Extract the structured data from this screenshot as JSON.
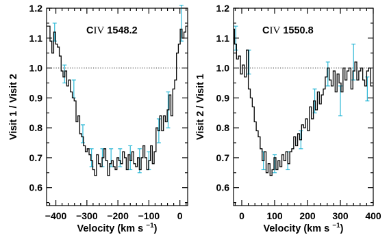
{
  "chart_data": [
    {
      "type": "line",
      "annotation": "CIV 1548.2",
      "annotation_parts": {
        "element": "C",
        "ion": "IV",
        "wavelength": "1548.2"
      },
      "xlabel": "Velocity (km s",
      "xlabel_sup": "−1",
      "xlabel_close": ")",
      "ylabel": "Visit 1 / Visit 2",
      "xlim": [
        -430,
        25
      ],
      "ylim": [
        0.54,
        1.2
      ],
      "xticks": [
        -400,
        -300,
        -200,
        -100,
        0
      ],
      "xtick_labels": [
        "−400",
        "−300",
        "−200",
        "−100",
        "0"
      ],
      "yticks": [
        0.6,
        0.7,
        0.8,
        0.9,
        1.0,
        1.1,
        1.2
      ],
      "ytick_labels": [
        "0.6",
        "0.7",
        "0.8",
        "0.9",
        "1.0",
        "1.1",
        "1.2"
      ],
      "reference_line": 1.0,
      "series": [
        {
          "x": [
            -428,
            -422,
            -416,
            -410,
            -404,
            -398,
            -392,
            -386,
            -380,
            -374,
            -368,
            -362,
            -356,
            -350,
            -344,
            -338,
            -332,
            -326,
            -320,
            -314,
            -308,
            -302,
            -296,
            -290,
            -284,
            -278,
            -272,
            -266,
            -260,
            -254,
            -248,
            -242,
            -236,
            -230,
            -224,
            -218,
            -212,
            -206,
            -200,
            -194,
            -188,
            -182,
            -176,
            -170,
            -164,
            -158,
            -152,
            -146,
            -140,
            -134,
            -128,
            -122,
            -116,
            -110,
            -104,
            -98,
            -92,
            -86,
            -80,
            -74,
            -68,
            -62,
            -56,
            -50,
            -44,
            -38,
            -32,
            -26,
            -20,
            -14,
            -8,
            -2,
            4,
            10,
            16,
            22
          ],
          "y": [
            1.14,
            1.14,
            1.09,
            1.05,
            1.12,
            1.08,
            1.07,
            1.04,
            0.99,
            0.97,
            0.99,
            0.94,
            0.96,
            0.92,
            0.9,
            0.89,
            0.82,
            0.84,
            0.78,
            0.77,
            0.74,
            0.72,
            0.73,
            0.71,
            0.69,
            0.66,
            0.64,
            0.71,
            0.68,
            0.67,
            0.7,
            0.73,
            0.69,
            0.64,
            0.68,
            0.69,
            0.67,
            0.66,
            0.7,
            0.69,
            0.68,
            0.72,
            0.7,
            0.66,
            0.71,
            0.69,
            0.72,
            0.68,
            0.67,
            0.7,
            0.66,
            0.7,
            0.74,
            0.7,
            0.66,
            0.69,
            0.74,
            0.68,
            0.72,
            0.8,
            0.79,
            0.84,
            0.79,
            0.84,
            0.82,
            0.86,
            0.91,
            0.84,
            0.93,
            0.96,
            1.05,
            1.08,
            1.13,
            1.1,
            1.12,
            1.14
          ]
        }
      ],
      "error_bars": [
        {
          "x": -404,
          "y": 1.12,
          "err": 0.03
        },
        {
          "x": -372,
          "y": 0.98,
          "err": 0.03
        },
        {
          "x": -342,
          "y": 0.93,
          "err": 0.03
        },
        {
          "x": -313,
          "y": 0.78,
          "err": 0.03
        },
        {
          "x": -285,
          "y": 0.7,
          "err": 0.03
        },
        {
          "x": -250,
          "y": 0.7,
          "err": 0.03
        },
        {
          "x": -222,
          "y": 0.7,
          "err": 0.03
        },
        {
          "x": -193,
          "y": 0.7,
          "err": 0.03
        },
        {
          "x": -160,
          "y": 0.7,
          "err": 0.04
        },
        {
          "x": -130,
          "y": 0.69,
          "err": 0.04
        },
        {
          "x": -100,
          "y": 0.69,
          "err": 0.03
        },
        {
          "x": -68,
          "y": 0.79,
          "err": 0.04
        },
        {
          "x": -38,
          "y": 0.86,
          "err": 0.06
        },
        {
          "x": 5,
          "y": 1.15,
          "err": 0.06
        }
      ]
    },
    {
      "type": "line",
      "annotation": "CIV 1550.8",
      "annotation_parts": {
        "element": "C",
        "ion": "IV",
        "wavelength": "1550.8"
      },
      "xlabel": "Velocity (km s",
      "xlabel_sup": "−1",
      "xlabel_close": ")",
      "ylabel": "Visit 2 / Visit 1",
      "xlim": [
        -25,
        400
      ],
      "ylim": [
        0.54,
        1.2
      ],
      "xticks": [
        0,
        100,
        200,
        300,
        400
      ],
      "xtick_labels": [
        "0",
        "100",
        "200",
        "300",
        "400"
      ],
      "yticks": [
        0.6,
        0.7,
        0.8,
        0.9,
        1.0,
        1.1,
        1.2
      ],
      "ytick_labels": [
        "0.6",
        "0.7",
        "0.8",
        "0.9",
        "1.0",
        "1.1",
        "1.2"
      ],
      "reference_line": 1.0,
      "series": [
        {
          "x": [
            -25,
            -19,
            -13,
            -7,
            -1,
            5,
            11,
            17,
            23,
            29,
            35,
            41,
            47,
            53,
            59,
            65,
            71,
            77,
            83,
            89,
            95,
            101,
            107,
            113,
            119,
            125,
            131,
            137,
            143,
            149,
            155,
            161,
            167,
            173,
            179,
            185,
            191,
            197,
            203,
            209,
            215,
            221,
            227,
            233,
            239,
            245,
            251,
            257,
            263,
            269,
            275,
            281,
            287,
            293,
            299,
            305,
            311,
            317,
            323,
            329,
            335,
            341,
            347,
            353,
            359,
            365,
            371,
            377,
            383,
            389,
            395
          ],
          "y": [
            1.13,
            1.08,
            1.03,
            1.04,
            0.98,
            1.01,
            0.97,
            1.06,
            0.93,
            0.9,
            0.87,
            0.82,
            0.79,
            0.77,
            0.73,
            0.69,
            0.72,
            0.65,
            0.68,
            0.64,
            0.66,
            0.7,
            0.66,
            0.69,
            0.67,
            0.71,
            0.69,
            0.72,
            0.68,
            0.72,
            0.73,
            0.77,
            0.74,
            0.78,
            0.76,
            0.81,
            0.8,
            0.83,
            0.79,
            0.87,
            0.83,
            0.89,
            0.86,
            0.92,
            0.88,
            0.91,
            0.93,
            0.97,
            1.0,
            0.96,
            0.94,
            0.99,
            0.92,
            0.98,
            0.95,
            0.92,
            1.0,
            0.96,
            0.99,
            1.0,
            0.93,
            0.99,
            1.02,
            0.96,
            0.99,
            1.0,
            0.96,
            0.94,
            0.99,
            1.0,
            0.94
          ]
        }
      ],
      "error_bars": [
        {
          "x": -18,
          "y": 1.1,
          "err": 0.04
        },
        {
          "x": 22,
          "y": 1.02,
          "err": 0.04
        },
        {
          "x": 66,
          "y": 0.69,
          "err": 0.03
        },
        {
          "x": 100,
          "y": 0.68,
          "err": 0.03
        },
        {
          "x": 140,
          "y": 0.69,
          "err": 0.03
        },
        {
          "x": 180,
          "y": 0.76,
          "err": 0.03
        },
        {
          "x": 222,
          "y": 0.89,
          "err": 0.04
        },
        {
          "x": 262,
          "y": 0.98,
          "err": 0.04
        },
        {
          "x": 300,
          "y": 0.89,
          "err": 0.05
        },
        {
          "x": 340,
          "y": 1.02,
          "err": 0.06
        },
        {
          "x": 382,
          "y": 0.93,
          "err": 0.04
        }
      ]
    }
  ]
}
